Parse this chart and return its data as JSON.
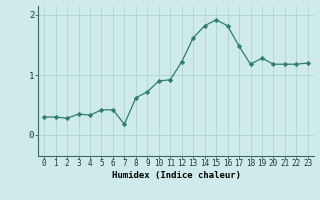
{
  "x": [
    0,
    1,
    2,
    3,
    4,
    5,
    6,
    7,
    8,
    9,
    10,
    11,
    12,
    13,
    14,
    15,
    16,
    17,
    18,
    19,
    20,
    21,
    22,
    23
  ],
  "y": [
    0.3,
    0.3,
    0.28,
    0.35,
    0.33,
    0.42,
    0.42,
    0.18,
    0.62,
    0.72,
    0.9,
    0.92,
    1.22,
    1.62,
    1.82,
    1.92,
    1.82,
    1.48,
    1.18,
    1.28,
    1.18,
    1.18,
    1.18,
    1.2
  ],
  "line_color": "#2e7d6e",
  "marker_color": "#2e7d6e",
  "bg_color": "#ceeaea",
  "grid_color": "#aed4d0",
  "xlabel": "Humidex (Indice chaleur)",
  "xlim": [
    -0.5,
    23.5
  ],
  "ylim": [
    -0.35,
    2.15
  ],
  "yticks": [
    0,
    1,
    2
  ],
  "ytick_labels": [
    "0",
    "1",
    "2"
  ],
  "xticks": [
    0,
    1,
    2,
    3,
    4,
    5,
    6,
    7,
    8,
    9,
    10,
    11,
    12,
    13,
    14,
    15,
    16,
    17,
    18,
    19,
    20,
    21,
    22,
    23
  ],
  "xlabel_fontsize": 6.5,
  "ytick_fontsize": 6.5,
  "xtick_fontsize": 5.5
}
